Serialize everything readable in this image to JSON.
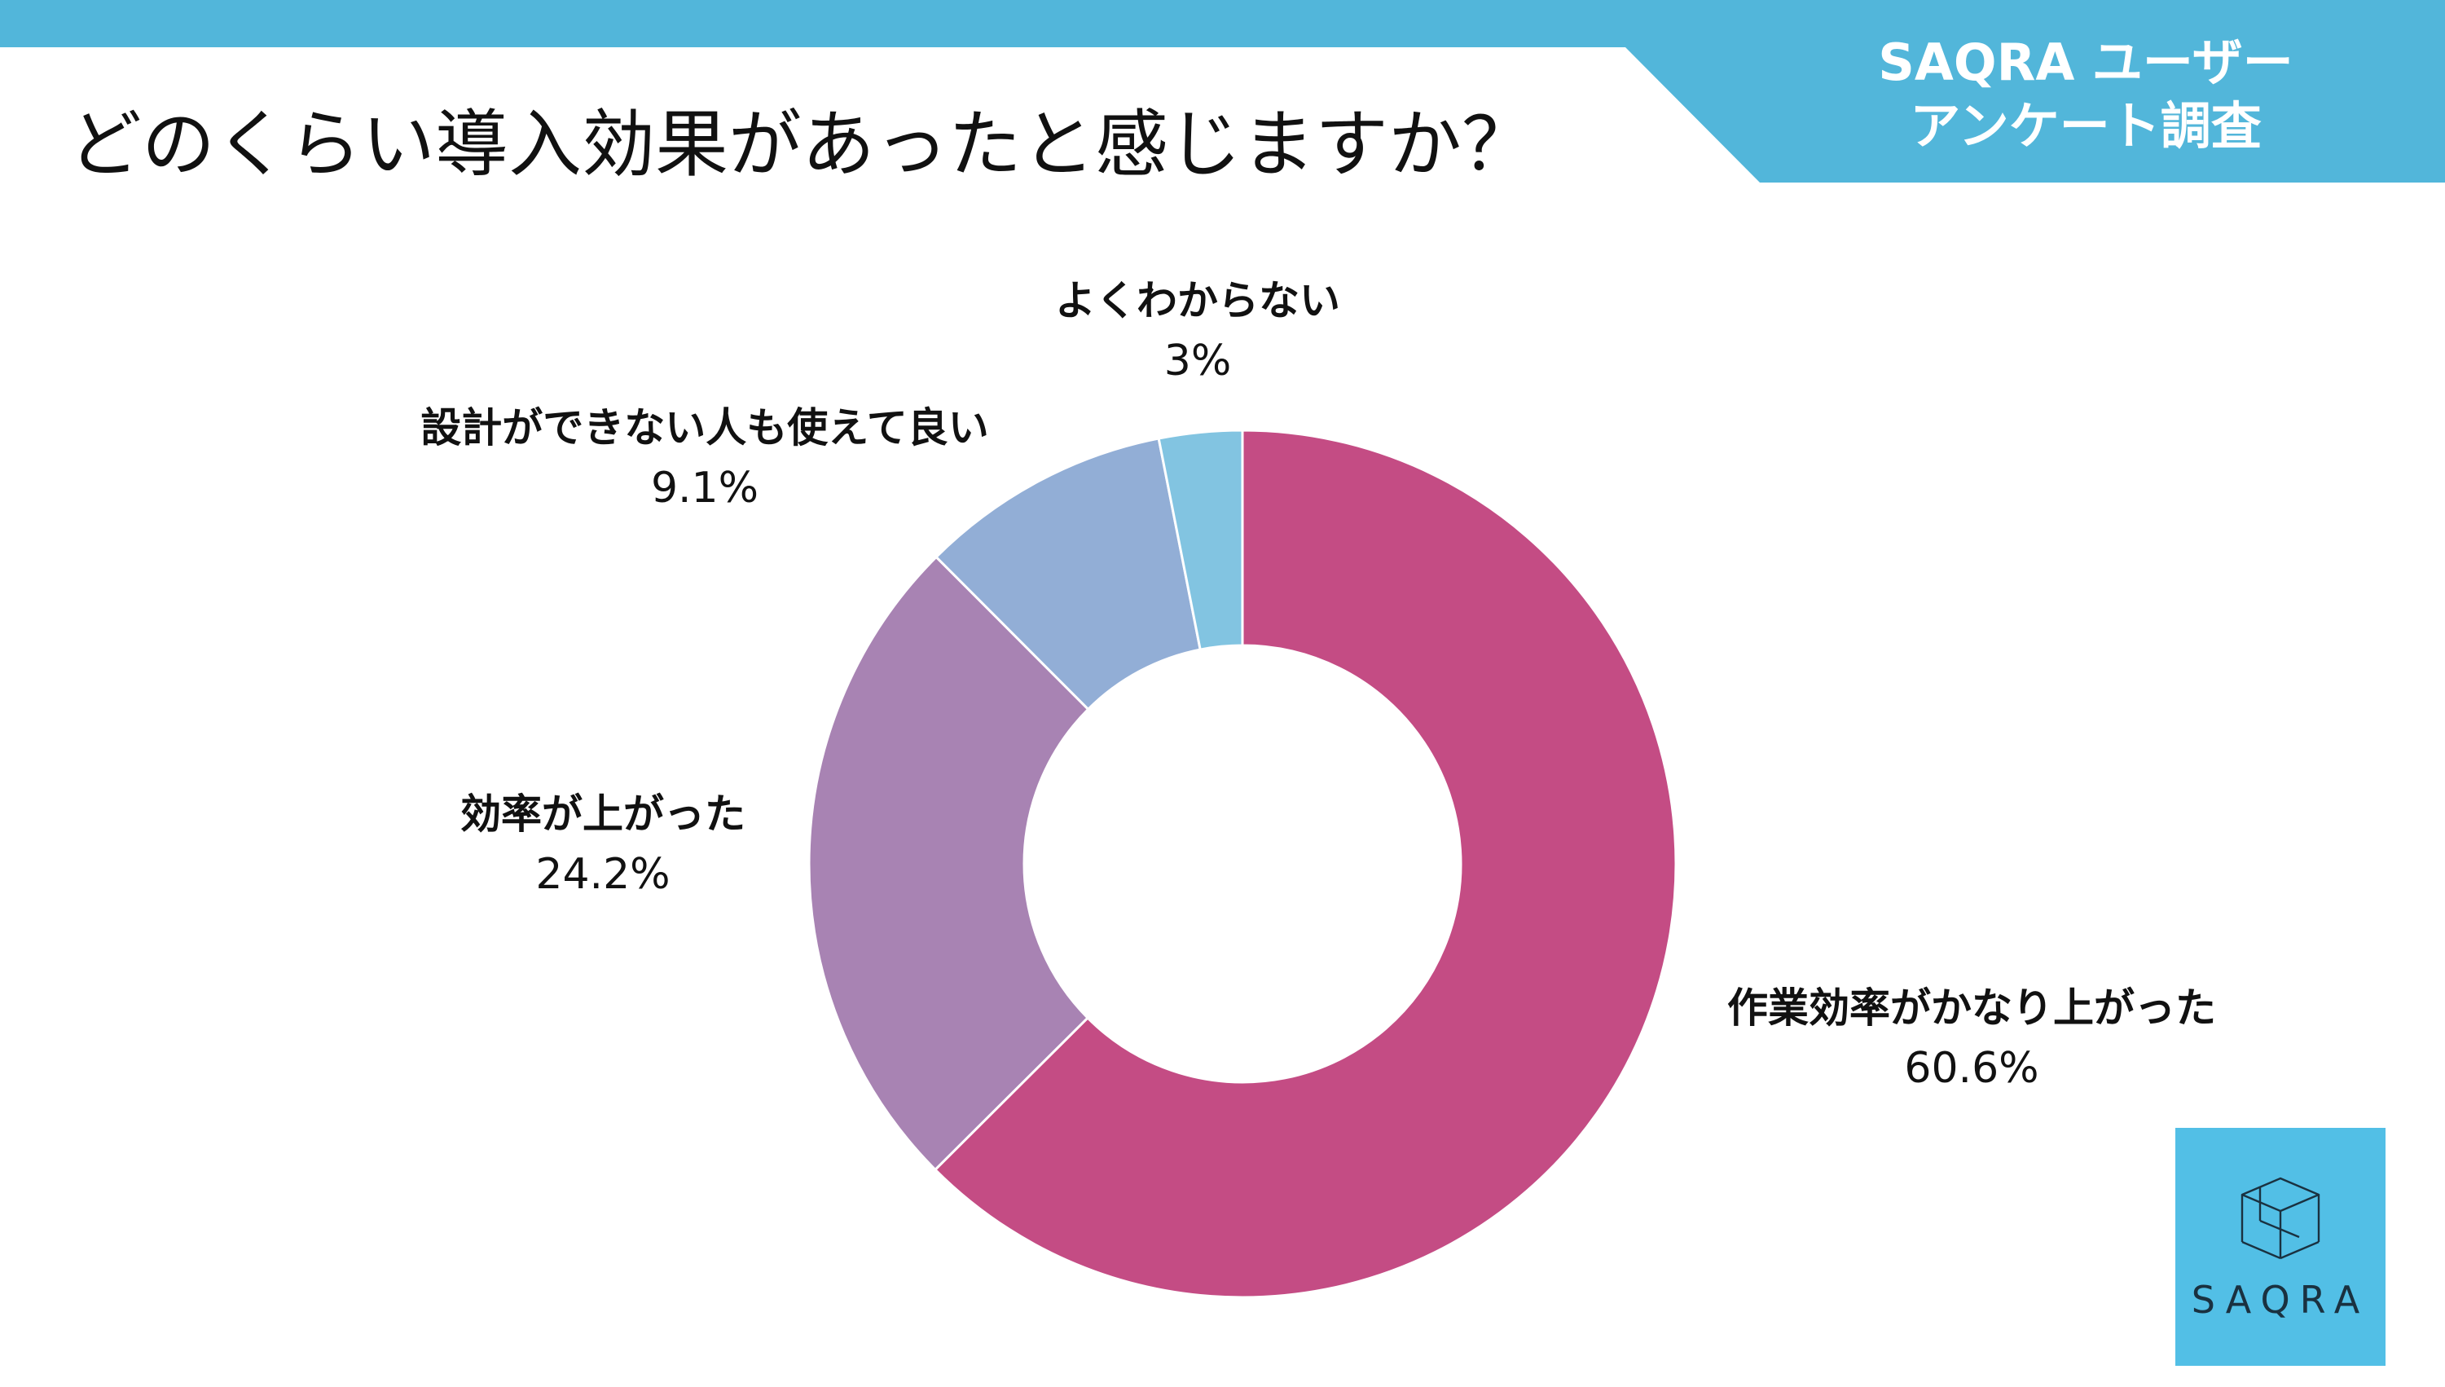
{
  "header": {
    "title": "どのくらい導入効果があったと感じますか？",
    "badge_line1": "SAQRA ユーザー",
    "badge_line2": "アンケート調査"
  },
  "colors": {
    "accent": "#52b6da",
    "logo_bg": "#52bfe6",
    "slices": [
      "#c44c84",
      "#a883b3",
      "#92aed6",
      "#82c4e1"
    ]
  },
  "chart_data": {
    "type": "pie",
    "donut": true,
    "title": "どのくらい導入効果があったと感じますか？",
    "categories": [
      "作業効率がかなり上がった",
      "効率が上がった",
      "設計ができない人も使えて良い",
      "よくわからない"
    ],
    "values": [
      60.6,
      24.2,
      9.1,
      3
    ],
    "value_labels": [
      "60.6%",
      "24.2%",
      "9.1%",
      "3%"
    ],
    "start": "12 o'clock",
    "direction": "clockwise"
  },
  "logo": {
    "icon": "cube-icon",
    "text": "SAQRA"
  }
}
